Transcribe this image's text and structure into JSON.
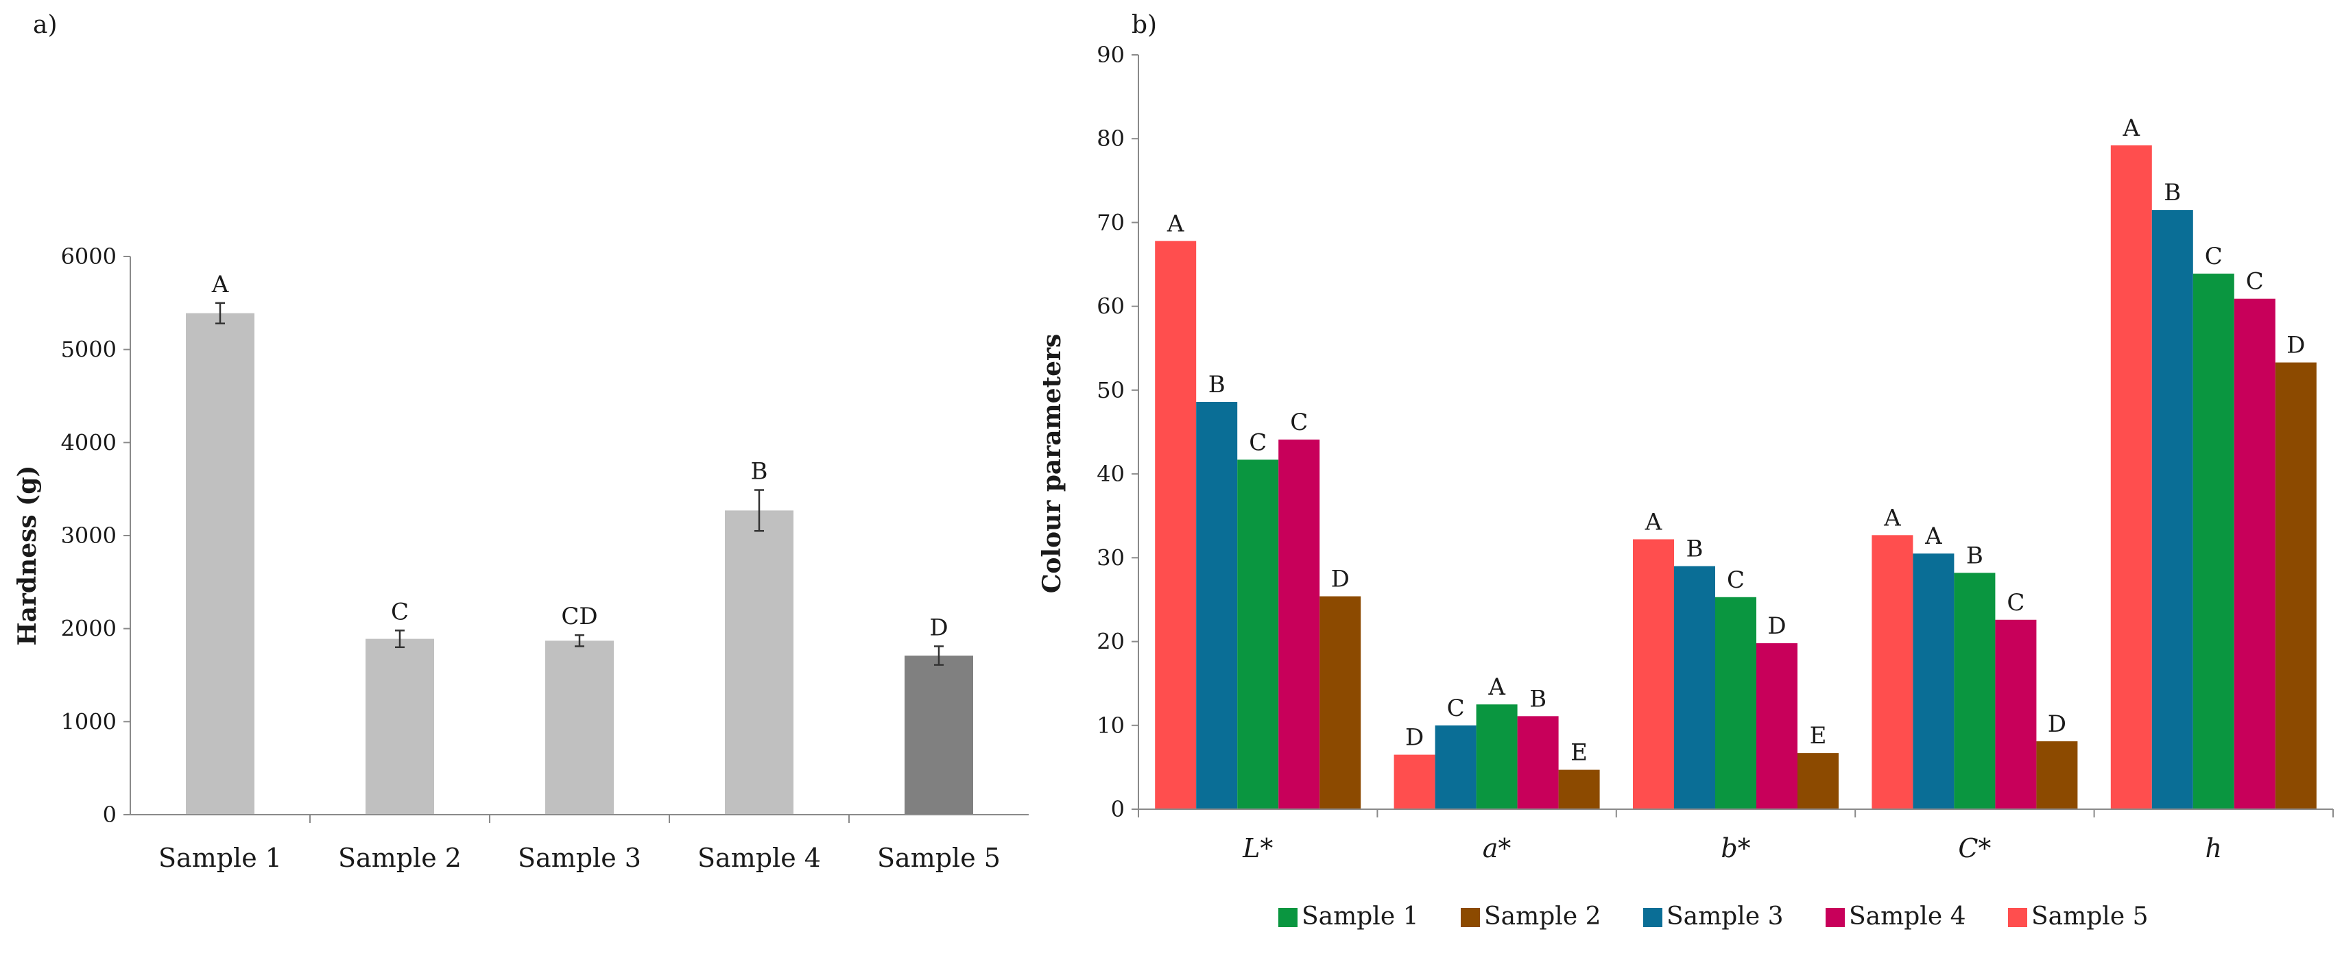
{
  "chart_data": [
    {
      "panel_label": "a)",
      "type": "bar",
      "ylabel": "Hardness (g)",
      "ylim": [
        0,
        6000
      ],
      "yticks": [
        "0",
        "1000",
        "2000",
        "3000",
        "4000",
        "5000",
        "6000"
      ],
      "categories": [
        "Sample 1",
        "Sample 2",
        "Sample 3",
        "Sample 4",
        "Sample 5"
      ],
      "values": [
        5390,
        1890,
        1870,
        3270,
        1710
      ],
      "errors": [
        110,
        90,
        60,
        220,
        100
      ],
      "letters": [
        "A",
        "C",
        "CD",
        "B",
        "D"
      ],
      "bar_colors": [
        "#c0c0c0",
        "#c0c0c0",
        "#c0c0c0",
        "#c0c0c0",
        "#808080"
      ]
    },
    {
      "panel_label": "b)",
      "type": "bar",
      "ylabel": "Colour parameters",
      "ylim": [
        0,
        90
      ],
      "yticks": [
        "0",
        "10",
        "20",
        "30",
        "40",
        "50",
        "60",
        "70",
        "80",
        "90"
      ],
      "categories": [
        "L*",
        "a*",
        "b*",
        "C*",
        "h"
      ],
      "series": [
        {
          "name": "Sample 5",
          "color": "#ff4e4e",
          "values": [
            67.8,
            6.5,
            32.2,
            32.7,
            79.2
          ],
          "letters": [
            "A",
            "D",
            "A",
            "A",
            "A"
          ]
        },
        {
          "name": "Sample 3",
          "color": "#0a6e96",
          "values": [
            48.6,
            10.0,
            29.0,
            30.5,
            71.5
          ],
          "letters": [
            "B",
            "C",
            "B",
            "A",
            "B"
          ]
        },
        {
          "name": "Sample 1",
          "color": "#0a9640",
          "values": [
            41.7,
            12.5,
            25.3,
            28.2,
            63.9
          ],
          "letters": [
            "C",
            "A",
            "C",
            "B",
            "C"
          ]
        },
        {
          "name": "Sample 4",
          "color": "#c8005a",
          "values": [
            44.1,
            11.1,
            19.8,
            22.6,
            60.9
          ],
          "letters": [
            "C",
            "B",
            "D",
            "C",
            "C"
          ]
        },
        {
          "name": "Sample 2",
          "color": "#8c4a00",
          "values": [
            25.4,
            4.7,
            6.7,
            8.1,
            53.3
          ],
          "letters": [
            "D",
            "E",
            "E",
            "D",
            "D"
          ]
        }
      ],
      "legend_order": [
        "Sample 1",
        "Sample 2",
        "Sample 3",
        "Sample 4",
        "Sample 5"
      ],
      "legend_position": "bottom"
    }
  ]
}
